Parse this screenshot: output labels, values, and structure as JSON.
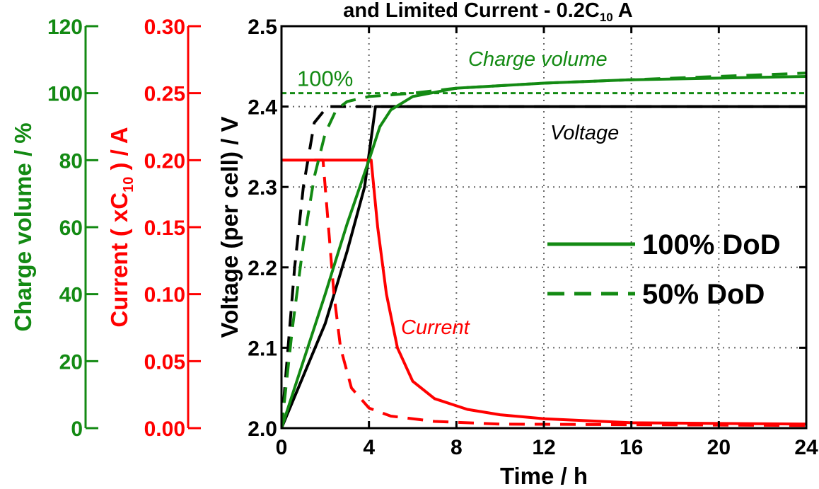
{
  "chart_data": {
    "type": "line",
    "title": "and Limited Current - 0.2C",
    "title_subscript": "10",
    "title_suffix": " A",
    "colors": {
      "voltage": "#000000",
      "current": "#ff0000",
      "charge": "#138a13"
    },
    "x": {
      "label": "Time / h",
      "range": [
        0,
        24
      ],
      "ticks": [
        0,
        4,
        8,
        12,
        16,
        20,
        24
      ],
      "tick_labels": [
        "0",
        "4",
        "8",
        "12",
        "16",
        "20",
        "24"
      ]
    },
    "y_voltage": {
      "label": "Voltage (per cell) / V",
      "range": [
        2.0,
        2.5
      ],
      "ticks": [
        2.0,
        2.1,
        2.2,
        2.3,
        2.4,
        2.5
      ],
      "tick_labels": [
        "2.0",
        "2.1",
        "2.2",
        "2.3",
        "2.4",
        "2.5"
      ]
    },
    "y_current": {
      "label_pre": "Current ( xC",
      "label_sub": "10",
      "label_post": " ) / A",
      "range": [
        0,
        0.3
      ],
      "ticks": [
        0,
        0.05,
        0.1,
        0.15,
        0.2,
        0.25,
        0.3
      ],
      "tick_labels": [
        "0.00",
        "0.05",
        "0.10",
        "0.15",
        "0.20",
        "0.25",
        "0.30"
      ]
    },
    "y_charge": {
      "label": "Charge volume / %",
      "range": [
        0,
        120
      ],
      "ticks": [
        0,
        20,
        40,
        60,
        80,
        100,
        120
      ],
      "tick_labels": [
        "0",
        "20",
        "40",
        "60",
        "80",
        "100",
        "120"
      ]
    },
    "grid": true,
    "reference_line": {
      "axis": "y_charge",
      "value": 100,
      "label": "100%"
    },
    "annotations": [
      {
        "text": "Charge volume",
        "series": "charge"
      },
      {
        "text": "Voltage",
        "series": "voltage"
      },
      {
        "text": "Current",
        "series": "current"
      }
    ],
    "legend": {
      "placement": "right",
      "entries": [
        {
          "label": "100% DoD",
          "style": "solid"
        },
        {
          "label": "50% DoD",
          "style": "dashed"
        }
      ]
    },
    "series": [
      {
        "name": "100% DoD",
        "quantity": "voltage",
        "axis": "y_voltage",
        "style": "solid",
        "points": [
          [
            0,
            2.0
          ],
          [
            1,
            2.065
          ],
          [
            2,
            2.13
          ],
          [
            3,
            2.22
          ],
          [
            3.8,
            2.3
          ],
          [
            4.3,
            2.4
          ],
          [
            24,
            2.4
          ]
        ]
      },
      {
        "name": "50% DoD",
        "quantity": "voltage",
        "axis": "y_voltage",
        "style": "dashed",
        "points": [
          [
            0,
            2.0
          ],
          [
            0.3,
            2.1
          ],
          [
            0.6,
            2.2
          ],
          [
            1.0,
            2.3
          ],
          [
            1.5,
            2.38
          ],
          [
            2.1,
            2.4
          ],
          [
            24,
            2.4
          ]
        ]
      },
      {
        "name": "100% DoD",
        "quantity": "current",
        "axis": "y_current",
        "style": "solid",
        "points": [
          [
            0,
            0.2
          ],
          [
            4.1,
            0.2
          ],
          [
            4.4,
            0.15
          ],
          [
            4.8,
            0.1
          ],
          [
            5.3,
            0.06
          ],
          [
            6,
            0.035
          ],
          [
            7,
            0.022
          ],
          [
            8.5,
            0.014
          ],
          [
            10,
            0.01
          ],
          [
            12,
            0.007
          ],
          [
            16,
            0.004
          ],
          [
            24,
            0.003
          ]
        ]
      },
      {
        "name": "50% DoD",
        "quantity": "current",
        "axis": "y_current",
        "style": "dashed",
        "points": [
          [
            1.5,
            0.2
          ],
          [
            1.9,
            0.2
          ],
          [
            2.1,
            0.16
          ],
          [
            2.4,
            0.1
          ],
          [
            2.7,
            0.06
          ],
          [
            3.2,
            0.03
          ],
          [
            4,
            0.015
          ],
          [
            5,
            0.009
          ],
          [
            7,
            0.005
          ],
          [
            10,
            0.003
          ],
          [
            24,
            0.002
          ]
        ]
      },
      {
        "name": "100% DoD",
        "quantity": "charge",
        "axis": "y_charge",
        "style": "solid",
        "points": [
          [
            0,
            0
          ],
          [
            1,
            20
          ],
          [
            2,
            40
          ],
          [
            3,
            61
          ],
          [
            4,
            80
          ],
          [
            4.5,
            90
          ],
          [
            5,
            95
          ],
          [
            6,
            99
          ],
          [
            8,
            101.5
          ],
          [
            12,
            103
          ],
          [
            16,
            104
          ],
          [
            20,
            104.5
          ],
          [
            24,
            105
          ]
        ]
      },
      {
        "name": "50% DoD",
        "quantity": "charge",
        "axis": "y_charge",
        "style": "dashed",
        "points": [
          [
            0,
            0
          ],
          [
            0.5,
            30
          ],
          [
            1,
            55
          ],
          [
            1.5,
            75
          ],
          [
            2,
            88
          ],
          [
            2.5,
            95
          ],
          [
            3,
            97.5
          ],
          [
            4,
            99
          ],
          [
            6,
            100
          ],
          [
            8,
            101.5
          ],
          [
            12,
            103
          ],
          [
            16,
            104
          ],
          [
            20,
            105
          ],
          [
            24,
            106
          ]
        ]
      }
    ]
  }
}
